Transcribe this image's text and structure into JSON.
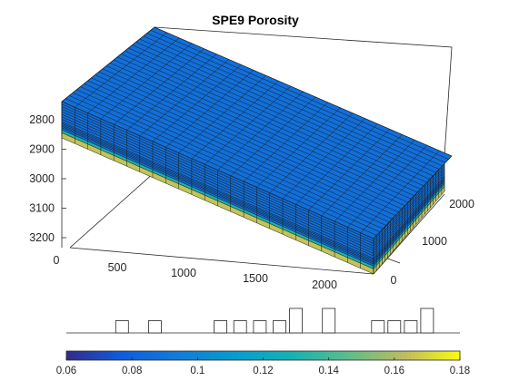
{
  "chart_data": [
    {
      "type": "surface3d",
      "title": "SPE9 Porosity",
      "x_ticks": [
        "0",
        "500",
        "1000",
        "1500",
        "2000"
      ],
      "y_ticks": [
        "0",
        "1000",
        "2000"
      ],
      "z_ticks": [
        "2800",
        "2900",
        "3000",
        "3100",
        "3200"
      ],
      "grid_cells_x": 24,
      "grid_cells_y": 25,
      "layers": 15,
      "layer_porosity": [
        0.087,
        0.087,
        0.087,
        0.087,
        0.087,
        0.087,
        0.087,
        0.087,
        0.087,
        0.087,
        0.087,
        0.087,
        0.087,
        0.13,
        0.165
      ],
      "top_porosity": 0.087
    },
    {
      "type": "histogram",
      "description_values": [
        0.077,
        0.087,
        0.097,
        0.107,
        0.113,
        0.12,
        0.13,
        0.14,
        0.155,
        0.16,
        0.17
      ],
      "bins": [
        {
          "center": 0.077,
          "height": 1
        },
        {
          "center": 0.087,
          "height": 1
        },
        {
          "center": 0.097,
          "height": 0
        },
        {
          "center": 0.107,
          "height": 1
        },
        {
          "center": 0.113,
          "height": 1
        },
        {
          "center": 0.119,
          "height": 1
        },
        {
          "center": 0.125,
          "height": 1
        },
        {
          "center": 0.13,
          "height": 2
        },
        {
          "center": 0.14,
          "height": 2
        },
        {
          "center": 0.155,
          "height": 1
        },
        {
          "center": 0.16,
          "height": 1
        },
        {
          "center": 0.165,
          "height": 1
        },
        {
          "center": 0.17,
          "height": 2
        }
      ],
      "xlim": [
        0.06,
        0.18
      ]
    },
    {
      "type": "colorbar",
      "colormap": "parula",
      "range": [
        0.06,
        0.18
      ],
      "tick_labels": [
        "0.06",
        "0.08",
        "0.1",
        "0.12",
        "0.14",
        "0.16",
        "0.18"
      ]
    }
  ]
}
